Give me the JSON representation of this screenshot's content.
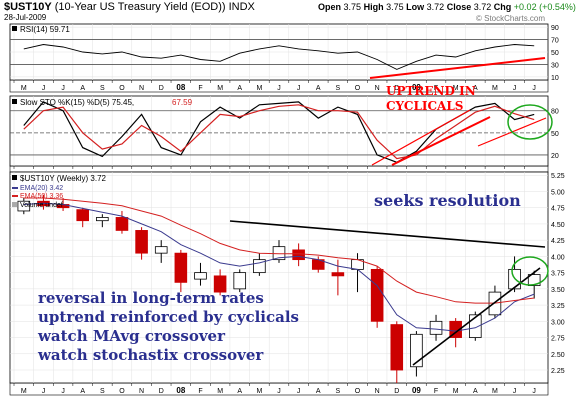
{
  "header": {
    "symbol": "$UST10Y",
    "description": "(10-Year US Treasury Yield (EOD))",
    "exchange": "INDX",
    "date": "28-Jul-2009",
    "open_label": "Open",
    "open": "3.75",
    "high_label": "High",
    "high": "3.75",
    "low_label": "Low",
    "low": "3.72",
    "close_label": "Close",
    "close": "3.72",
    "chg_label": "Chg",
    "chg": "+0.02 (+0.54%)",
    "credit": "© StockCharts.com"
  },
  "colors": {
    "black": "#000000",
    "ema20": "#3b3b8f",
    "ema50": "#d42020",
    "up": "#000000",
    "down": "#cc0000",
    "annot_red": "#ff0000",
    "annot_blue": "#2a2f8f",
    "circle": "#1ea81e"
  },
  "annotations": {
    "uptrend": [
      "UPTREND IN",
      "CYCLICALS"
    ],
    "seeks": "seeks resolution",
    "notes": [
      "reversal in long-term rates",
      "uptrend reinforced by cyclicals",
      "watch MAvg crossover",
      "watch stochastix crossover"
    ]
  },
  "chart_data": [
    {
      "type": "line",
      "title": "RSI(14) 59.71",
      "legend": [
        {
          "label": "RSI(14) 59.71"
        }
      ],
      "y_ticks": [
        10,
        30,
        50,
        70,
        90
      ],
      "ylim": [
        5,
        95
      ],
      "x": [
        "2007-05",
        "2007-06",
        "2007-07",
        "2007-08",
        "2007-09",
        "2007-10",
        "2007-11",
        "2007-12",
        "2008-01",
        "2008-02",
        "2008-03",
        "2008-04",
        "2008-05",
        "2008-06",
        "2008-07",
        "2008-08",
        "2008-09",
        "2008-10",
        "2008-11",
        "2008-12",
        "2009-01",
        "2009-02",
        "2009-03",
        "2009-04",
        "2009-05",
        "2009-06",
        "2009-07"
      ],
      "series": [
        {
          "values": [
            55,
            62,
            58,
            50,
            47,
            50,
            42,
            40,
            45,
            38,
            35,
            48,
            55,
            60,
            55,
            52,
            48,
            50,
            38,
            22,
            35,
            45,
            42,
            52,
            58,
            62,
            60
          ]
        }
      ]
    },
    {
      "type": "line",
      "title": "Slow STO %K(15) %D(5) 75.45, 67.59",
      "legend": [
        {
          "label": "Slow STO %K(15) %D(5) 75.45,"
        },
        {
          "label": "67.59"
        }
      ],
      "y_ticks": [
        20,
        50,
        80
      ],
      "ylim": [
        5,
        100
      ],
      "x": [
        "2007-05",
        "2007-06",
        "2007-07",
        "2007-08",
        "2007-09",
        "2007-10",
        "2007-11",
        "2007-12",
        "2008-01",
        "2008-02",
        "2008-03",
        "2008-04",
        "2008-05",
        "2008-06",
        "2008-07",
        "2008-08",
        "2008-09",
        "2008-10",
        "2008-11",
        "2008-12",
        "2009-01",
        "2009-02",
        "2009-03",
        "2009-04",
        "2009-05",
        "2009-06",
        "2009-07"
      ],
      "series": [
        {
          "name": "%K(15)",
          "values": [
            60,
            92,
            80,
            30,
            18,
            45,
            75,
            30,
            20,
            65,
            85,
            70,
            88,
            90,
            92,
            70,
            85,
            75,
            20,
            10,
            25,
            55,
            70,
            85,
            90,
            68,
            75
          ]
        },
        {
          "name": "%D(5)",
          "values": [
            55,
            80,
            85,
            50,
            28,
            35,
            60,
            45,
            25,
            50,
            75,
            72,
            80,
            86,
            88,
            80,
            80,
            78,
            40,
            15,
            20,
            42,
            60,
            78,
            86,
            76,
            68
          ]
        }
      ]
    },
    {
      "type": "candlestick",
      "title": "$UST10Y (Weekly) 3.72",
      "legend": [
        {
          "label": "$UST10Y (Weekly) 3.72"
        },
        {
          "label": "EMA(20) 3.42"
        },
        {
          "label": "EMA(50) 3.36"
        },
        {
          "label": "Volume undef"
        }
      ],
      "y_ticks": [
        2.25,
        2.5,
        2.75,
        3.0,
        3.25,
        3.5,
        3.75,
        4.0,
        4.25,
        4.5,
        4.75,
        5.0,
        5.25
      ],
      "ylim": [
        2.05,
        5.3
      ],
      "x_ticks": [
        "M",
        "J",
        "J",
        "A",
        "S",
        "O",
        "N",
        "D",
        "08",
        "F",
        "M",
        "A",
        "M",
        "J",
        "J",
        "A",
        "S",
        "O",
        "N",
        "D",
        "09",
        "F",
        "M",
        "A",
        "M",
        "J",
        "J"
      ],
      "x": [
        "2007-05",
        "2007-06",
        "2007-07",
        "2007-08",
        "2007-09",
        "2007-10",
        "2007-11",
        "2007-12",
        "2008-01",
        "2008-02",
        "2008-03",
        "2008-04",
        "2008-05",
        "2008-06",
        "2008-07",
        "2008-08",
        "2008-09",
        "2008-10",
        "2008-11",
        "2008-12",
        "2009-01",
        "2009-02",
        "2009-03",
        "2009-04",
        "2009-05",
        "2009-06",
        "2009-07"
      ],
      "candles": [
        {
          "open": 4.7,
          "close": 4.85,
          "high": 4.9,
          "low": 4.65
        },
        {
          "open": 4.85,
          "close": 4.78,
          "high": 4.95,
          "low": 4.72
        },
        {
          "open": 4.8,
          "close": 4.75,
          "high": 4.9,
          "low": 4.7
        },
        {
          "open": 4.72,
          "close": 4.55,
          "high": 4.75,
          "low": 4.45
        },
        {
          "open": 4.55,
          "close": 4.6,
          "high": 4.65,
          "low": 4.45
        },
        {
          "open": 4.6,
          "close": 4.4,
          "high": 4.7,
          "low": 4.35
        },
        {
          "open": 4.4,
          "close": 4.05,
          "high": 4.45,
          "low": 3.95
        },
        {
          "open": 4.05,
          "close": 4.15,
          "high": 4.25,
          "low": 3.9
        },
        {
          "open": 4.05,
          "close": 3.6,
          "high": 4.1,
          "low": 3.45
        },
        {
          "open": 3.65,
          "close": 3.75,
          "high": 3.9,
          "low": 3.55
        },
        {
          "open": 3.7,
          "close": 3.45,
          "high": 3.8,
          "low": 3.4
        },
        {
          "open": 3.5,
          "close": 3.75,
          "high": 3.8,
          "low": 3.45
        },
        {
          "open": 3.75,
          "close": 3.95,
          "high": 4.05,
          "low": 3.7
        },
        {
          "open": 3.95,
          "close": 4.15,
          "high": 4.25,
          "low": 3.9
        },
        {
          "open": 4.1,
          "close": 3.95,
          "high": 4.2,
          "low": 3.85
        },
        {
          "open": 3.95,
          "close": 3.8,
          "high": 4.0,
          "low": 3.75
        },
        {
          "open": 3.75,
          "close": 3.7,
          "high": 3.95,
          "low": 3.4
        },
        {
          "open": 3.8,
          "close": 3.95,
          "high": 4.05,
          "low": 3.45
        },
        {
          "open": 3.8,
          "close": 3.0,
          "high": 3.85,
          "low": 2.9
        },
        {
          "open": 2.95,
          "close": 2.25,
          "high": 3.0,
          "low": 2.05
        },
        {
          "open": 2.3,
          "close": 2.8,
          "high": 2.85,
          "low": 2.15
        },
        {
          "open": 2.8,
          "close": 3.0,
          "high": 3.1,
          "low": 2.7
        },
        {
          "open": 3.0,
          "close": 2.75,
          "high": 3.05,
          "low": 2.6
        },
        {
          "open": 2.75,
          "close": 3.1,
          "high": 3.15,
          "low": 2.7
        },
        {
          "open": 3.1,
          "close": 3.45,
          "high": 3.55,
          "low": 3.05
        },
        {
          "open": 3.5,
          "close": 3.8,
          "high": 4.0,
          "low": 3.45
        },
        {
          "open": 3.55,
          "close": 3.72,
          "high": 3.78,
          "low": 3.35
        }
      ],
      "series": [
        {
          "name": "EMA(20)",
          "values": [
            4.8,
            4.82,
            4.8,
            4.74,
            4.68,
            4.62,
            4.5,
            4.38,
            4.18,
            4.05,
            3.9,
            3.85,
            3.9,
            3.98,
            4.0,
            3.95,
            3.85,
            3.8,
            3.55,
            3.1,
            2.9,
            2.88,
            2.85,
            2.9,
            3.05,
            3.3,
            3.42
          ]
        },
        {
          "name": "EMA(50)",
          "values": [
            4.9,
            4.9,
            4.88,
            4.85,
            4.82,
            4.78,
            4.7,
            4.62,
            4.48,
            4.35,
            4.2,
            4.1,
            4.05,
            4.04,
            4.04,
            4.02,
            3.98,
            3.95,
            3.85,
            3.62,
            3.45,
            3.38,
            3.3,
            3.28,
            3.28,
            3.32,
            3.36
          ]
        }
      ]
    }
  ]
}
